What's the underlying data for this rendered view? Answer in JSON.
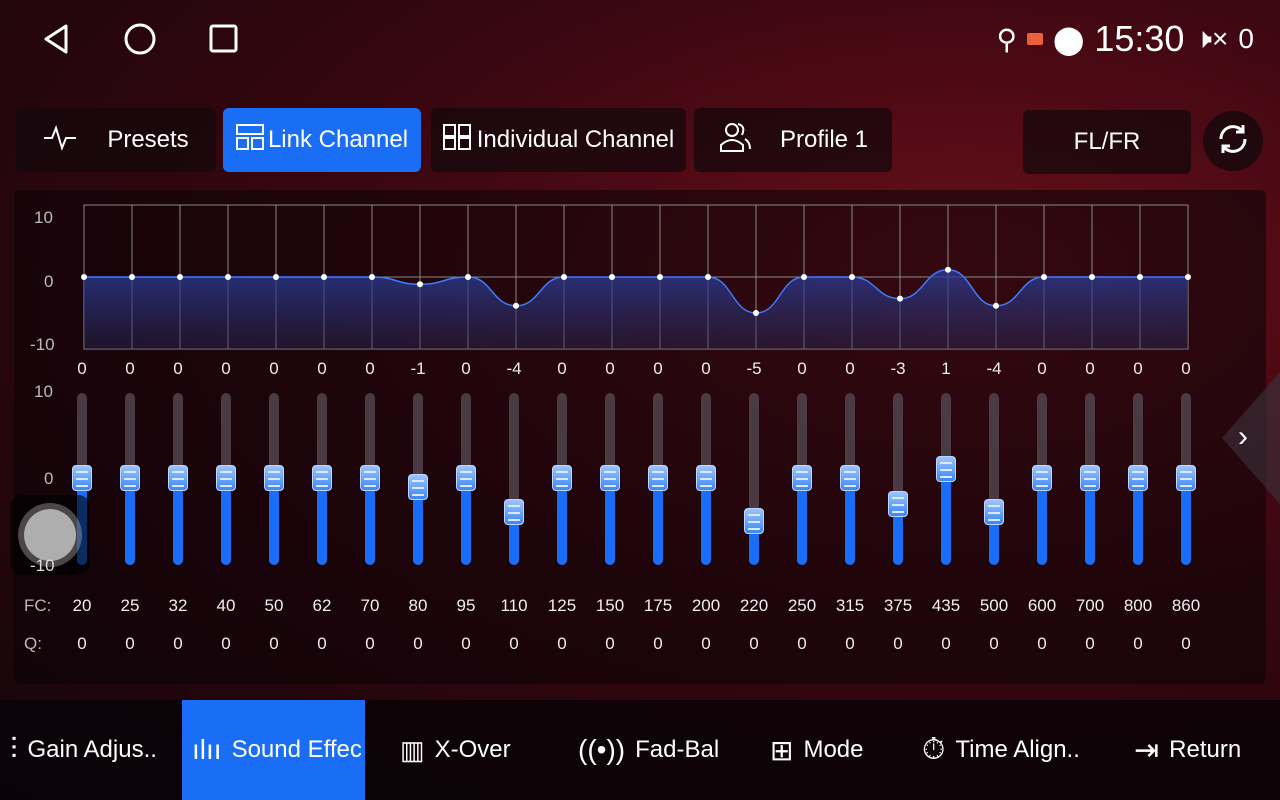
{
  "status": {
    "time": "15:30",
    "volume": "0",
    "icons": [
      "usb-icon",
      "cast-icon",
      "location-icon",
      "mute-icon"
    ]
  },
  "tabs": {
    "presets": "Presets",
    "link_channel": "Link Channel",
    "individual_channel": "Individual Channel",
    "profile": "Profile 1",
    "channel": "FL/FR"
  },
  "graph": {
    "y_ticks": [
      "10",
      "0",
      "-10"
    ]
  },
  "slider_axis": [
    "10",
    "0",
    "-10"
  ],
  "bands": {
    "gains": [
      0,
      0,
      0,
      0,
      0,
      0,
      0,
      -1,
      0,
      -4,
      0,
      0,
      0,
      0,
      -5,
      0,
      0,
      -3,
      1,
      -4,
      0,
      0,
      0,
      0
    ],
    "fc": [
      "20",
      "25",
      "32",
      "40",
      "50",
      "62",
      "70",
      "80",
      "95",
      "110",
      "125",
      "150",
      "175",
      "200",
      "220",
      "250",
      "315",
      "375",
      "435",
      "500",
      "600",
      "700",
      "800",
      "860"
    ],
    "q": [
      "0",
      "0",
      "0",
      "0",
      "0",
      "0",
      "0",
      "0",
      "0",
      "0",
      "0",
      "0",
      "0",
      "0",
      "0",
      "0",
      "0",
      "0",
      "0",
      "0",
      "0",
      "0",
      "0",
      "0"
    ],
    "fc_label": "FC:",
    "q_label": "Q:",
    "range": [
      -10,
      10
    ]
  },
  "bottom": {
    "gain": "Gain Adjus..",
    "sound": "Sound Effec",
    "xover": "X-Over",
    "fadbal": "Fad-Bal",
    "mode": "Mode",
    "time": "Time Align..",
    "return": "Return"
  },
  "colors": {
    "accent": "#1a6ef5"
  }
}
